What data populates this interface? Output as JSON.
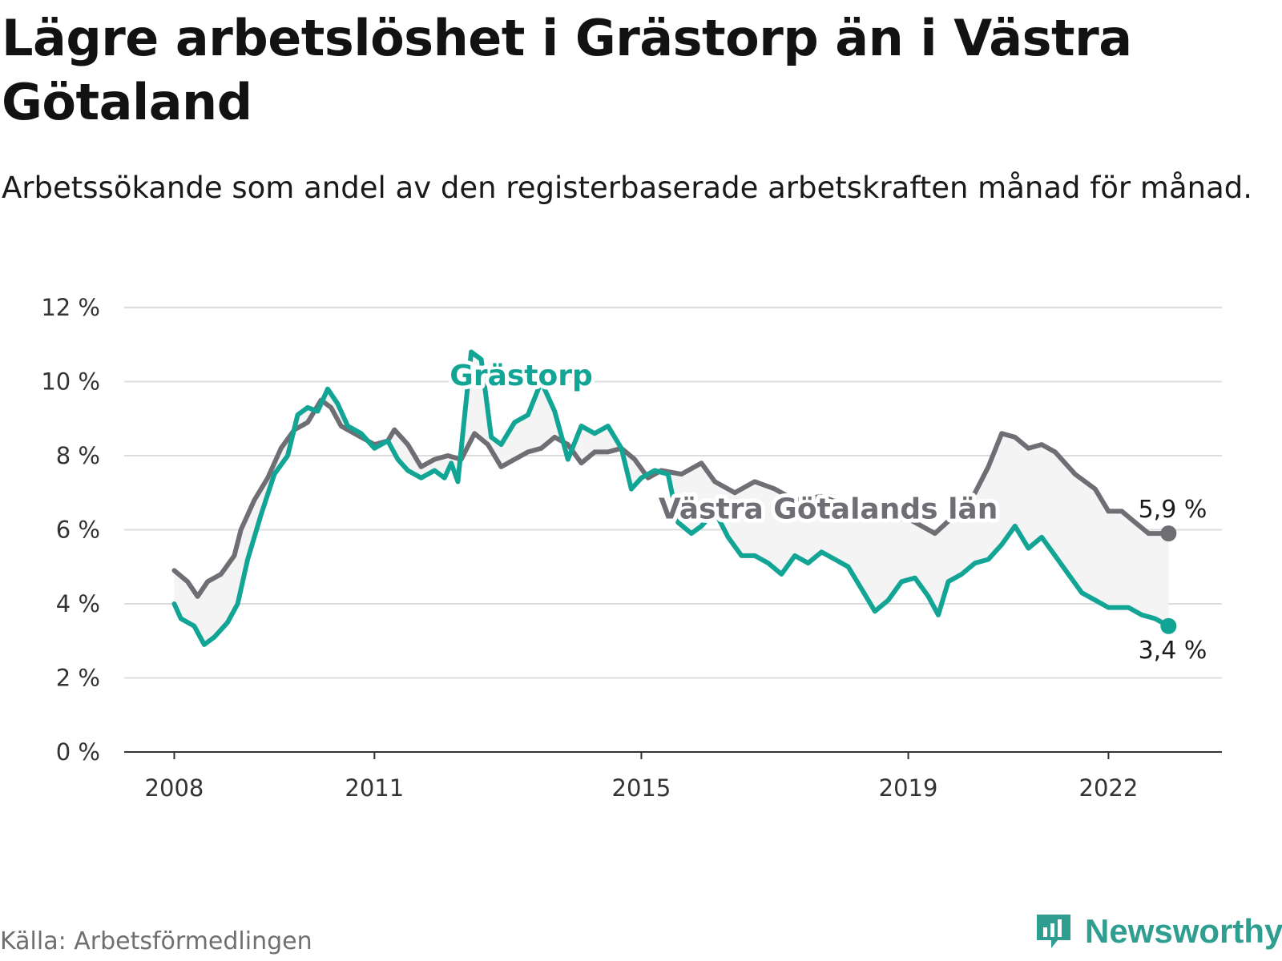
{
  "header": {
    "title": "Lägre arbetslöshet i Grästorp än i Västra Götaland",
    "subtitle": "Arbetssökande som andel av den registerbaserade arbetskraften månad för månad."
  },
  "footer": {
    "source": "Källa: Arbetsförmedlingen",
    "brand": "Newsworthy"
  },
  "colors": {
    "grastorp": "#12a596",
    "region": "#6f6e74",
    "band": "#f4f4f4",
    "grid": "#dcdcdc",
    "axis": "#333333"
  },
  "chart_data": {
    "type": "line",
    "title": "Lägre arbetslöshet i Grästorp än i Västra Götaland",
    "xlabel": "",
    "ylabel": "",
    "ylim": [
      0,
      12
    ],
    "y_ticks": [
      0,
      2,
      4,
      6,
      8,
      10,
      12
    ],
    "y_tick_labels": [
      "0 %",
      "2 %",
      "4 %",
      "6 %",
      "8 %",
      "10 %",
      "12 %"
    ],
    "x_range": [
      2007.25,
      2023.7
    ],
    "x_ticks": [
      2008,
      2011,
      2015,
      2019,
      2022
    ],
    "x_tick_labels": [
      "2008",
      "2011",
      "2015",
      "2019",
      "2022"
    ],
    "grid": true,
    "series": [
      {
        "name": "Västra Götalands län",
        "label": "Västra Götalands län",
        "end_label": "5,9 %",
        "points": [
          [
            2008.0,
            4.9
          ],
          [
            2008.2,
            4.6
          ],
          [
            2008.35,
            4.2
          ],
          [
            2008.5,
            4.6
          ],
          [
            2008.7,
            4.8
          ],
          [
            2008.9,
            5.3
          ],
          [
            2009.0,
            6.0
          ],
          [
            2009.2,
            6.8
          ],
          [
            2009.4,
            7.4
          ],
          [
            2009.6,
            8.2
          ],
          [
            2009.8,
            8.7
          ],
          [
            2010.0,
            8.9
          ],
          [
            2010.2,
            9.5
          ],
          [
            2010.35,
            9.3
          ],
          [
            2010.5,
            8.8
          ],
          [
            2010.7,
            8.6
          ],
          [
            2010.9,
            8.4
          ],
          [
            2011.0,
            8.3
          ],
          [
            2011.2,
            8.4
          ],
          [
            2011.3,
            8.7
          ],
          [
            2011.5,
            8.3
          ],
          [
            2011.7,
            7.7
          ],
          [
            2011.9,
            7.9
          ],
          [
            2012.1,
            8.0
          ],
          [
            2012.3,
            7.9
          ],
          [
            2012.5,
            8.6
          ],
          [
            2012.7,
            8.3
          ],
          [
            2012.9,
            7.7
          ],
          [
            2013.1,
            7.9
          ],
          [
            2013.3,
            8.1
          ],
          [
            2013.5,
            8.2
          ],
          [
            2013.7,
            8.5
          ],
          [
            2013.9,
            8.3
          ],
          [
            2014.1,
            7.8
          ],
          [
            2014.3,
            8.1
          ],
          [
            2014.5,
            8.1
          ],
          [
            2014.7,
            8.2
          ],
          [
            2014.9,
            7.9
          ],
          [
            2015.1,
            7.4
          ],
          [
            2015.3,
            7.6
          ],
          [
            2015.6,
            7.5
          ],
          [
            2015.9,
            7.8
          ],
          [
            2016.1,
            7.3
          ],
          [
            2016.4,
            7.0
          ],
          [
            2016.7,
            7.3
          ],
          [
            2017.0,
            7.1
          ],
          [
            2017.3,
            6.8
          ],
          [
            2017.7,
            6.9
          ],
          [
            2018.0,
            6.7
          ],
          [
            2018.3,
            6.6
          ],
          [
            2018.6,
            6.3
          ],
          [
            2019.0,
            6.3
          ],
          [
            2019.2,
            6.1
          ],
          [
            2019.4,
            5.9
          ],
          [
            2019.7,
            6.4
          ],
          [
            2020.0,
            7.0
          ],
          [
            2020.2,
            7.7
          ],
          [
            2020.4,
            8.6
          ],
          [
            2020.6,
            8.5
          ],
          [
            2020.8,
            8.2
          ],
          [
            2021.0,
            8.3
          ],
          [
            2021.2,
            8.1
          ],
          [
            2021.5,
            7.5
          ],
          [
            2021.8,
            7.1
          ],
          [
            2022.0,
            6.5
          ],
          [
            2022.2,
            6.5
          ],
          [
            2022.4,
            6.2
          ],
          [
            2022.6,
            5.9
          ],
          [
            2022.9,
            5.9
          ]
        ]
      },
      {
        "name": "Grästorp",
        "label": "Grästorp",
        "end_label": "3,4 %",
        "points": [
          [
            2008.0,
            4.0
          ],
          [
            2008.1,
            3.6
          ],
          [
            2008.3,
            3.4
          ],
          [
            2008.45,
            2.9
          ],
          [
            2008.6,
            3.1
          ],
          [
            2008.8,
            3.5
          ],
          [
            2008.95,
            4.0
          ],
          [
            2009.1,
            5.2
          ],
          [
            2009.3,
            6.4
          ],
          [
            2009.5,
            7.5
          ],
          [
            2009.7,
            8.0
          ],
          [
            2009.85,
            9.1
          ],
          [
            2010.0,
            9.3
          ],
          [
            2010.15,
            9.2
          ],
          [
            2010.3,
            9.8
          ],
          [
            2010.45,
            9.4
          ],
          [
            2010.6,
            8.8
          ],
          [
            2010.8,
            8.6
          ],
          [
            2011.0,
            8.2
          ],
          [
            2011.2,
            8.4
          ],
          [
            2011.35,
            7.9
          ],
          [
            2011.5,
            7.6
          ],
          [
            2011.7,
            7.4
          ],
          [
            2011.9,
            7.6
          ],
          [
            2012.05,
            7.4
          ],
          [
            2012.15,
            7.8
          ],
          [
            2012.25,
            7.3
          ],
          [
            2012.45,
            10.8
          ],
          [
            2012.6,
            10.6
          ],
          [
            2012.75,
            8.5
          ],
          [
            2012.9,
            8.3
          ],
          [
            2013.1,
            8.9
          ],
          [
            2013.3,
            9.1
          ],
          [
            2013.5,
            10.0
          ],
          [
            2013.7,
            9.2
          ],
          [
            2013.9,
            7.9
          ],
          [
            2014.1,
            8.8
          ],
          [
            2014.3,
            8.6
          ],
          [
            2014.5,
            8.8
          ],
          [
            2014.7,
            8.2
          ],
          [
            2014.85,
            7.1
          ],
          [
            2015.0,
            7.4
          ],
          [
            2015.2,
            7.6
          ],
          [
            2015.4,
            7.5
          ],
          [
            2015.55,
            6.2
          ],
          [
            2015.75,
            5.9
          ],
          [
            2015.9,
            6.1
          ],
          [
            2016.1,
            6.5
          ],
          [
            2016.3,
            5.8
          ],
          [
            2016.5,
            5.3
          ],
          [
            2016.7,
            5.3
          ],
          [
            2016.9,
            5.1
          ],
          [
            2017.1,
            4.8
          ],
          [
            2017.3,
            5.3
          ],
          [
            2017.5,
            5.1
          ],
          [
            2017.7,
            5.4
          ],
          [
            2017.9,
            5.2
          ],
          [
            2018.1,
            5.0
          ],
          [
            2018.3,
            4.4
          ],
          [
            2018.5,
            3.8
          ],
          [
            2018.7,
            4.1
          ],
          [
            2018.9,
            4.6
          ],
          [
            2019.1,
            4.7
          ],
          [
            2019.3,
            4.2
          ],
          [
            2019.45,
            3.7
          ],
          [
            2019.6,
            4.6
          ],
          [
            2019.8,
            4.8
          ],
          [
            2020.0,
            5.1
          ],
          [
            2020.2,
            5.2
          ],
          [
            2020.4,
            5.6
          ],
          [
            2020.6,
            6.1
          ],
          [
            2020.8,
            5.5
          ],
          [
            2021.0,
            5.8
          ],
          [
            2021.2,
            5.3
          ],
          [
            2021.4,
            4.8
          ],
          [
            2021.6,
            4.3
          ],
          [
            2021.8,
            4.1
          ],
          [
            2022.0,
            3.9
          ],
          [
            2022.3,
            3.9
          ],
          [
            2022.5,
            3.7
          ],
          [
            2022.7,
            3.6
          ],
          [
            2022.9,
            3.4
          ]
        ]
      }
    ]
  }
}
